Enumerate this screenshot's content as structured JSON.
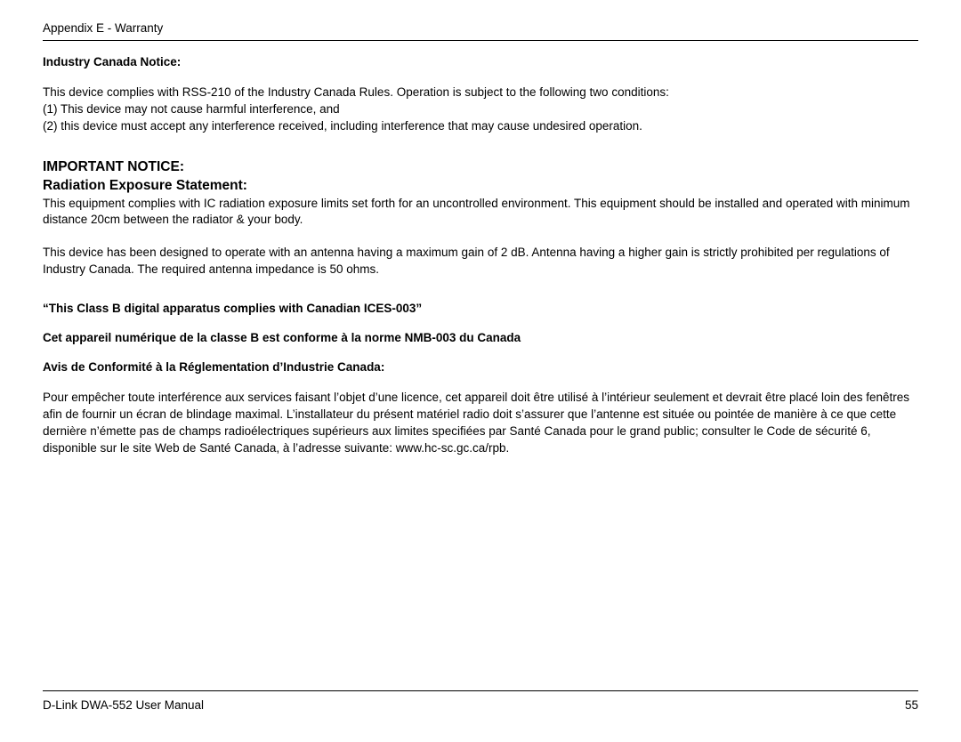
{
  "header": {
    "breadcrumb": "Appendix E - Warranty"
  },
  "sections": {
    "ic_notice_title": "Industry Canada Notice:",
    "ic_line1": "This device complies with RSS-210 of the Industry Canada Rules. Operation is subject to the following two conditions:",
    "ic_line2": "(1) This device may not cause harmful interference, and",
    "ic_line3": "(2) this device must accept any interference received, including interference that may cause undesired operation.",
    "important_title1": "IMPORTANT NOTICE:",
    "important_title2": "Radiation Exposure Statement:",
    "rad_p1": "This equipment complies with IC radiation exposure limits set forth for an uncontrolled environment. This equipment should be installed and operated with minimum distance 20cm between the radiator & your body.",
    "rad_p2": "This device has been designed to operate with an antenna having a maximum gain of 2 dB. Antenna having a higher gain is strictly prohibited per regulations of Industry Canada. The required antenna impedance is 50 ohms.",
    "classb_en": "“This Class B digital apparatus complies with Canadian ICES-003”",
    "classb_fr": "Cet appareil numérique de la classe B est conforme à la norme NMB-003 du Canada",
    "avis_title": "Avis de Conformité à la Réglementation d’Industrie Canada:",
    "avis_body": "Pour empêcher toute interférence aux services faisant l’objet d’une licence, cet appareil doit être utilisé à l’intérieur seulement et devrait être placé loin des fenêtres afin de fournir un écran de blindage maximal. L’installateur du présent matériel radio doit s’assurer que l’antenne est située ou pointée de manière à ce que cette dernière n’émette pas de champs radioélectriques supérieurs aux limites specifiées par Santé Canada pour le grand public; consulter le Code de sécurité 6, disponible sur le site Web de Santé Canada, à l’adresse suivante: www.hc-sc.gc.ca/rpb."
  },
  "footer": {
    "manual": "D-Link DWA-552 User Manual",
    "page": "55"
  }
}
